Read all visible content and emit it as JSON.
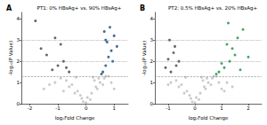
{
  "chart_data": [
    {
      "type": "scatter",
      "panel": "A",
      "title": "PT1: 0% HBsAg+ vs. 90% HBsAg+",
      "x_label": "log₂Fold Change",
      "y_label": "-log₁₀(P Value)",
      "xlim": [
        -2.3,
        1.5
      ],
      "ylim": [
        0,
        4.3
      ],
      "xticks": [
        -2,
        -1,
        0,
        1
      ],
      "yticks": [
        0,
        1,
        2,
        3,
        4
      ],
      "grid": false,
      "marker": "circle",
      "reference_lines": [
        {
          "y": 1.3,
          "line_style": "dashed"
        },
        {
          "y": 2,
          "line_style": "dotted"
        },
        {
          "y": 3,
          "line_style": "dotted"
        }
      ],
      "series": [
        {
          "color": "#c4c4c4",
          "x": [
            -0.1,
            0.05,
            0.2,
            -0.3,
            0.35,
            -0.5,
            0.5,
            -0.7,
            0.65,
            -0.9,
            0.8,
            -1.1,
            0.15,
            -0.2,
            0.4,
            -0.4,
            0.6,
            -0.6,
            0.3,
            -0.8,
            0.9,
            -1.3,
            1.0,
            0.0,
            -0.15,
            0.25,
            0.45,
            -0.35,
            0.7,
            -1.5
          ],
          "y": [
            0.1,
            0.3,
            0.5,
            0.6,
            0.8,
            0.9,
            1.0,
            1.1,
            1.2,
            1.2,
            1.3,
            1.0,
            0.2,
            0.4,
            0.7,
            0.5,
            0.9,
            0.8,
            1.1,
            0.6,
            1.0,
            0.9,
            0.7,
            0.05,
            0.25,
            1.25,
            1.2,
            1.25,
            1.3,
            0.7
          ]
        },
        {
          "color": "#555555",
          "x": [
            -1.2,
            -1.0,
            -0.8,
            -1.4,
            -0.6,
            -1.6,
            -0.9,
            -0.7,
            -1.1,
            -1.8
          ],
          "y": [
            1.6,
            1.8,
            2.0,
            2.3,
            1.5,
            2.6,
            2.8,
            1.7,
            3.1,
            3.9
          ]
        },
        {
          "color": "#2b5c8a",
          "x": [
            0.6,
            0.7,
            0.8,
            0.9,
            0.75,
            1.0,
            0.65,
            0.85,
            0.95,
            0.55,
            1.1,
            0.7
          ],
          "y": [
            1.5,
            1.8,
            2.2,
            2.5,
            2.9,
            3.2,
            3.4,
            3.6,
            2.0,
            1.4,
            2.7,
            3.0
          ]
        }
      ]
    },
    {
      "type": "scatter",
      "panel": "B",
      "title": "PT2: 0.5% HBsAg+ vs. 20% HBsAg+",
      "x_label": "log₂Fold Change",
      "y_label": "-log₁₀(P Value)",
      "xlim": [
        -1.5,
        2.5
      ],
      "ylim": [
        0,
        4.3
      ],
      "xticks": [
        -1,
        0,
        1,
        2
      ],
      "yticks": [
        0,
        1,
        2,
        3,
        4
      ],
      "grid": false,
      "marker": "circle",
      "reference_lines": [
        {
          "y": 1.3,
          "line_style": "dashed"
        },
        {
          "y": 2,
          "line_style": "dotted"
        },
        {
          "y": 3,
          "line_style": "dotted"
        }
      ],
      "series": [
        {
          "color": "#c4c4c4",
          "x": [
            -0.1,
            0.05,
            0.2,
            -0.3,
            0.35,
            -0.5,
            0.5,
            -0.7,
            0.65,
            0.9,
            0.8,
            -0.9,
            0.15,
            -0.2,
            0.4,
            -0.4,
            0.6,
            -0.6,
            0.3,
            1.1,
            1.2,
            -1.0,
            1.0,
            0.0,
            -0.15,
            0.25,
            0.45,
            -0.35,
            0.7,
            1.4
          ],
          "y": [
            0.1,
            0.3,
            0.5,
            0.6,
            0.8,
            0.9,
            1.0,
            1.1,
            1.2,
            1.0,
            1.3,
            1.0,
            0.2,
            0.4,
            0.7,
            0.5,
            0.9,
            0.8,
            1.1,
            0.6,
            1.0,
            0.9,
            0.7,
            0.05,
            0.25,
            1.25,
            1.2,
            1.25,
            1.3,
            0.8
          ]
        },
        {
          "color": "#555555",
          "x": [
            -0.9,
            -0.7,
            -1.0,
            -0.8,
            -0.6,
            -1.1,
            -0.75,
            -0.95
          ],
          "y": [
            1.5,
            1.8,
            2.1,
            2.4,
            2.0,
            1.7,
            2.7,
            3.0
          ]
        },
        {
          "color": "#2e9e4f",
          "x": [
            0.9,
            1.1,
            1.3,
            1.5,
            1.2,
            1.6,
            1.8,
            1.0,
            1.4,
            1.7,
            2.0,
            1.25,
            0.8
          ],
          "y": [
            1.5,
            1.7,
            2.0,
            2.3,
            2.8,
            3.1,
            3.5,
            1.9,
            2.6,
            1.6,
            2.2,
            3.8,
            1.4
          ]
        }
      ]
    }
  ]
}
